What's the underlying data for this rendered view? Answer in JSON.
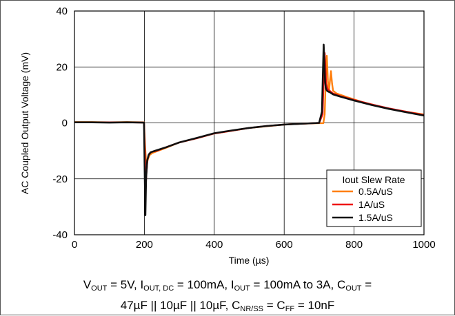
{
  "chart_data": {
    "type": "line",
    "title": "",
    "xlabel": "Time (µs)",
    "ylabel": "AC Coupled Output Voltage (mV)",
    "xlim": [
      0,
      1000
    ],
    "ylim": [
      -40,
      40
    ],
    "x_ticks": [
      "0",
      "200",
      "400",
      "600",
      "800",
      "1000"
    ],
    "y_ticks": [
      "40",
      "20",
      "0",
      "-20",
      "-40"
    ],
    "grid": true,
    "legend": {
      "title": "Iout Slew Rate",
      "position": "bottom-right"
    },
    "series": [
      {
        "name": "0.5A/uS",
        "color": "#ff7f0e",
        "x": [
          0,
          50,
          100,
          150,
          199,
          202,
          205,
          207,
          210,
          215,
          222,
          235,
          260,
          300,
          350,
          400,
          450,
          500,
          550,
          600,
          650,
          700,
          712,
          716,
          719,
          722,
          725,
          728,
          731,
          734,
          737,
          740,
          750,
          780,
          820,
          860,
          900,
          950,
          1000
        ],
        "y": [
          0.3,
          0.3,
          0.2,
          0.3,
          0.2,
          -8,
          -14,
          -15,
          -13,
          -11.5,
          -10.8,
          -10.2,
          -9,
          -7,
          -5.5,
          -3.8,
          -2.8,
          -1.8,
          -1.2,
          -0.6,
          -0.3,
          -0.1,
          -0.1,
          3,
          16,
          24,
          15,
          11,
          15,
          18.5,
          14,
          11.5,
          10.5,
          9.2,
          7.6,
          6.3,
          5,
          4,
          3
        ]
      },
      {
        "name": "1A/uS",
        "color": "#ee1111",
        "x": [
          0,
          50,
          100,
          150,
          199,
          202,
          204,
          206,
          209,
          214,
          220,
          235,
          260,
          300,
          350,
          400,
          450,
          500,
          550,
          600,
          650,
          700,
          710,
          713,
          716,
          718,
          720,
          722,
          725,
          730,
          740,
          760,
          800,
          850,
          900,
          950,
          1000
        ],
        "y": [
          0.2,
          0.2,
          0.2,
          0.2,
          0.1,
          -12,
          -23,
          -18,
          -13,
          -11,
          -10.4,
          -10,
          -8.8,
          -7,
          -5.5,
          -3.8,
          -2.8,
          -1.8,
          -1.1,
          -0.6,
          -0.3,
          0,
          3,
          16,
          25,
          20,
          14,
          13,
          12,
          11.5,
          10.5,
          9.6,
          8.2,
          6.6,
          5.2,
          4,
          2.8
        ]
      },
      {
        "name": "1.5A/uS",
        "color": "#111111",
        "x": [
          0,
          50,
          100,
          150,
          199,
          201,
          203,
          205,
          208,
          212,
          218,
          230,
          260,
          300,
          350,
          400,
          450,
          500,
          550,
          600,
          650,
          700,
          708,
          711,
          713,
          715,
          717,
          719,
          721,
          724,
          730,
          740,
          760,
          800,
          850,
          900,
          950,
          1000
        ],
        "y": [
          0.2,
          0.2,
          0.1,
          0.2,
          0.1,
          -18,
          -33,
          -20,
          -13.5,
          -11.5,
          -10.5,
          -10,
          -8.8,
          -7,
          -5.4,
          -3.7,
          -2.7,
          -1.8,
          -1.1,
          -0.6,
          -0.3,
          0,
          4,
          19,
          28,
          22,
          15,
          12.5,
          11.8,
          11.3,
          11,
          10.2,
          9.4,
          8,
          6.4,
          5,
          3.8,
          2.6
        ]
      }
    ]
  },
  "caption": {
    "line1": [
      {
        "t": "V"
      },
      {
        "t": "OUT",
        "sub": true
      },
      {
        "t": " = 5V, I"
      },
      {
        "t": "OUT, DC",
        "sub": true
      },
      {
        "t": " = 100mA, I"
      },
      {
        "t": "OUT",
        "sub": true
      },
      {
        "t": " = 100mA to 3A, C"
      },
      {
        "t": "OUT",
        "sub": true
      },
      {
        "t": " ="
      }
    ],
    "line2": [
      {
        "t": "47µF || 10µF || 10µF, C"
      },
      {
        "t": "NR/SS",
        "sub": true
      },
      {
        "t": " = C"
      },
      {
        "t": "FF",
        "sub": true
      },
      {
        "t": " = 10nF"
      }
    ]
  }
}
